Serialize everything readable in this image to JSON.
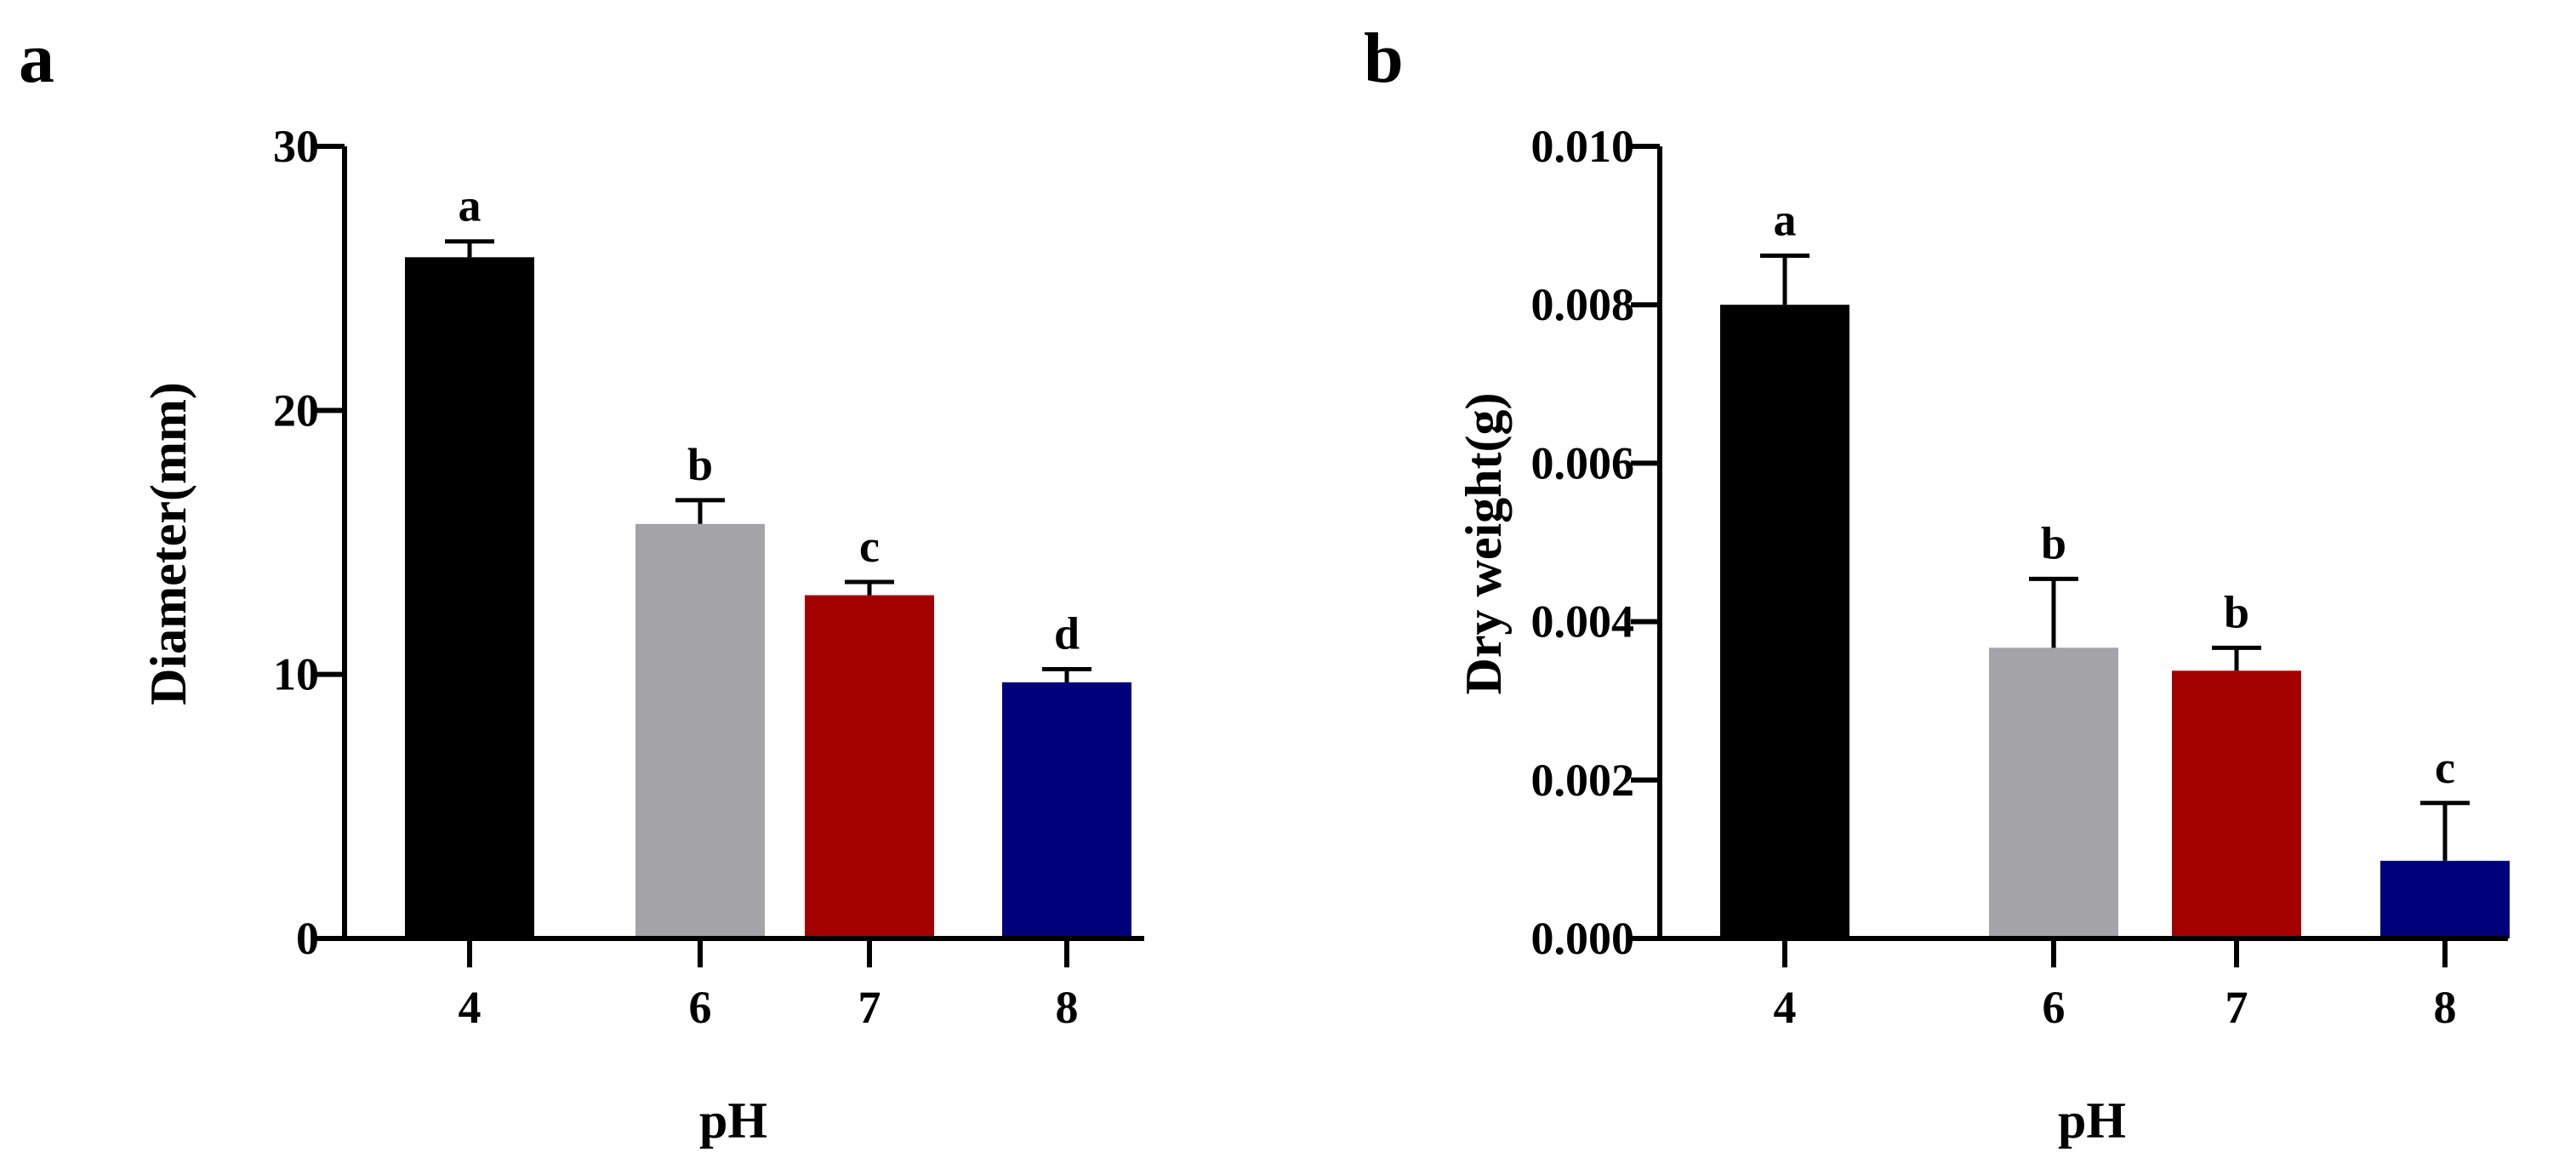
{
  "figure_panels": [
    {
      "panel": "a"
    },
    {
      "panel": "b"
    }
  ],
  "chart_data": [
    {
      "panel": "a",
      "type": "bar",
      "title": "",
      "xlabel": "pH",
      "ylabel": "Diameter(mm)",
      "categories": [
        "4",
        "6",
        "7",
        "8"
      ],
      "values": [
        25.8,
        15.7,
        13.0,
        9.7
      ],
      "errors": [
        0.6,
        0.9,
        0.5,
        0.5
      ],
      "significance": [
        "a",
        "b",
        "c",
        "d"
      ],
      "colors": [
        "#000000",
        "#a3a3a8",
        "#a30000",
        "#00007a"
      ],
      "ylim": [
        0,
        30
      ],
      "yticks": [
        0,
        10,
        20,
        30
      ],
      "ytick_labels": [
        "0",
        "10",
        "20",
        "30"
      ],
      "grid": false,
      "legend": "none"
    },
    {
      "panel": "b",
      "type": "bar",
      "title": "",
      "xlabel": "pH",
      "ylabel": "Dry weight(g)",
      "categories": [
        "4",
        "6",
        "7",
        "8"
      ],
      "values": [
        0.008,
        0.00367,
        0.00338,
        0.00098
      ],
      "errors": [
        0.00062,
        0.00087,
        0.00029,
        0.00073
      ],
      "significance": [
        "a",
        "b",
        "b",
        "c"
      ],
      "colors": [
        "#000000",
        "#a3a3a8",
        "#a30000",
        "#00007a"
      ],
      "ylim": [
        0,
        0.01
      ],
      "yticks": [
        0,
        0.002,
        0.004,
        0.006,
        0.008,
        0.01
      ],
      "ytick_labels": [
        "0.000",
        "0.002",
        "0.004",
        "0.006",
        "0.008",
        "0.010"
      ],
      "grid": false,
      "legend": "none"
    }
  ]
}
